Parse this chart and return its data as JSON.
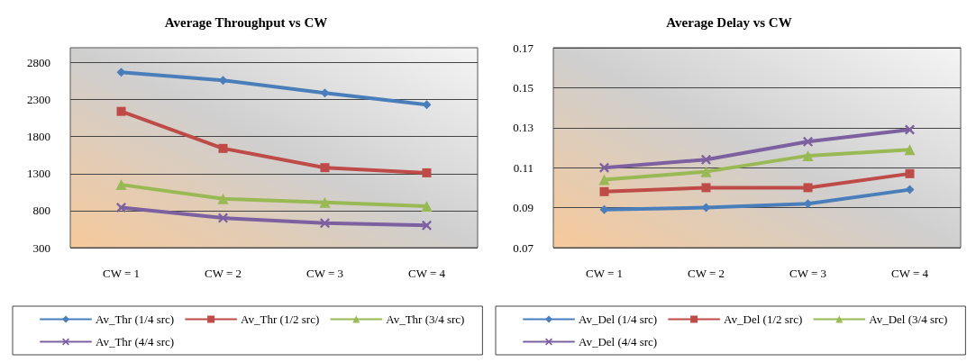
{
  "chart_data": [
    {
      "type": "line",
      "title": "Average Throughput vs CW",
      "categories": [
        "CW = 1",
        "CW = 2",
        "CW = 3",
        "CW = 4"
      ],
      "ylim": [
        300,
        3000
      ],
      "yticks": [
        300,
        800,
        1300,
        1800,
        2300,
        2800
      ],
      "grid": "y",
      "legend": "bottom",
      "series": [
        {
          "name": "Av_Thr (1/4 src)",
          "color": "#4a7ebb",
          "marker": "diamond",
          "values": [
            2670,
            2560,
            2390,
            2230
          ]
        },
        {
          "name": "Av_Thr (1/2 src)",
          "color": "#be4b48",
          "marker": "square",
          "values": [
            2140,
            1640,
            1380,
            1310
          ]
        },
        {
          "name": "Av_Thr (3/4 src)",
          "color": "#98b954",
          "marker": "triangle",
          "values": [
            1150,
            960,
            910,
            860
          ]
        },
        {
          "name": "Av_Thr (4/4 src)",
          "color": "#7d60a0",
          "marker": "cross",
          "values": [
            840,
            700,
            630,
            600
          ]
        }
      ]
    },
    {
      "type": "line",
      "title": "Average Delay vs CW",
      "categories": [
        "CW = 1",
        "CW = 2",
        "CW = 3",
        "CW = 4"
      ],
      "ylim": [
        0.07,
        0.17
      ],
      "yticks": [
        0.07,
        0.09,
        0.11,
        0.13,
        0.15,
        0.17
      ],
      "grid": "y",
      "legend": "bottom",
      "series": [
        {
          "name": "Av_Del (1/4 src)",
          "color": "#4a7ebb",
          "marker": "diamond",
          "values": [
            0.089,
            0.09,
            0.092,
            0.099
          ]
        },
        {
          "name": "Av_Del (1/2 src)",
          "color": "#be4b48",
          "marker": "square",
          "values": [
            0.098,
            0.1,
            0.1,
            0.107
          ]
        },
        {
          "name": "Av_Del (3/4 src)",
          "color": "#98b954",
          "marker": "triangle",
          "values": [
            0.104,
            0.108,
            0.116,
            0.119
          ]
        },
        {
          "name": "Av_Del (4/4 src)",
          "color": "#7d60a0",
          "marker": "cross",
          "values": [
            0.11,
            0.114,
            0.123,
            0.129
          ]
        }
      ]
    }
  ]
}
